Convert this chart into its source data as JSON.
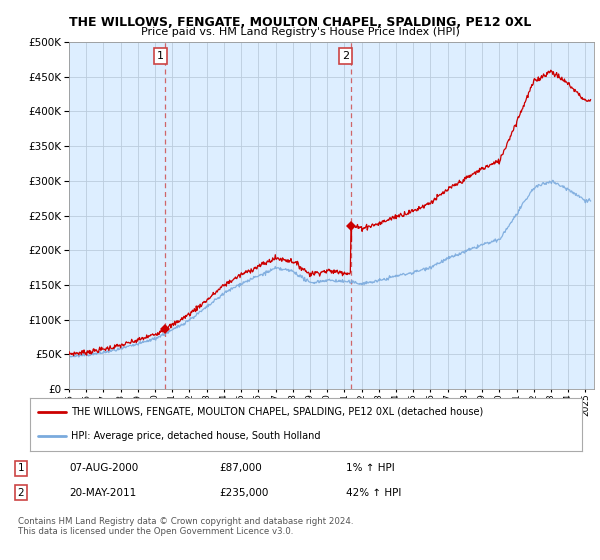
{
  "title": "THE WILLOWS, FENGATE, MOULTON CHAPEL, SPALDING, PE12 0XL",
  "subtitle": "Price paid vs. HM Land Registry's House Price Index (HPI)",
  "legend_line1": "THE WILLOWS, FENGATE, MOULTON CHAPEL, SPALDING, PE12 0XL (detached house)",
  "legend_line2": "HPI: Average price, detached house, South Holland",
  "footer": "Contains HM Land Registry data © Crown copyright and database right 2024.\nThis data is licensed under the Open Government Licence v3.0.",
  "annotation1_num": "1",
  "annotation1_date": "07-AUG-2000",
  "annotation1_price": "£87,000",
  "annotation1_hpi": "1% ↑ HPI",
  "annotation2_num": "2",
  "annotation2_date": "20-MAY-2011",
  "annotation2_price": "£235,000",
  "annotation2_hpi": "42% ↑ HPI",
  "sale1_x": 2000.6,
  "sale1_y": 87000,
  "sale2_x": 2011.38,
  "sale2_y": 235000,
  "x_min": 1995,
  "x_max": 2025.5,
  "y_min": 0,
  "y_max": 500000,
  "y_ticks": [
    0,
    50000,
    100000,
    150000,
    200000,
    250000,
    300000,
    350000,
    400000,
    450000,
    500000
  ],
  "red_color": "#cc0000",
  "blue_color": "#7aaadd",
  "chart_bg_color": "#ddeeff",
  "background_color": "#ffffff",
  "grid_color": "#bbccdd"
}
